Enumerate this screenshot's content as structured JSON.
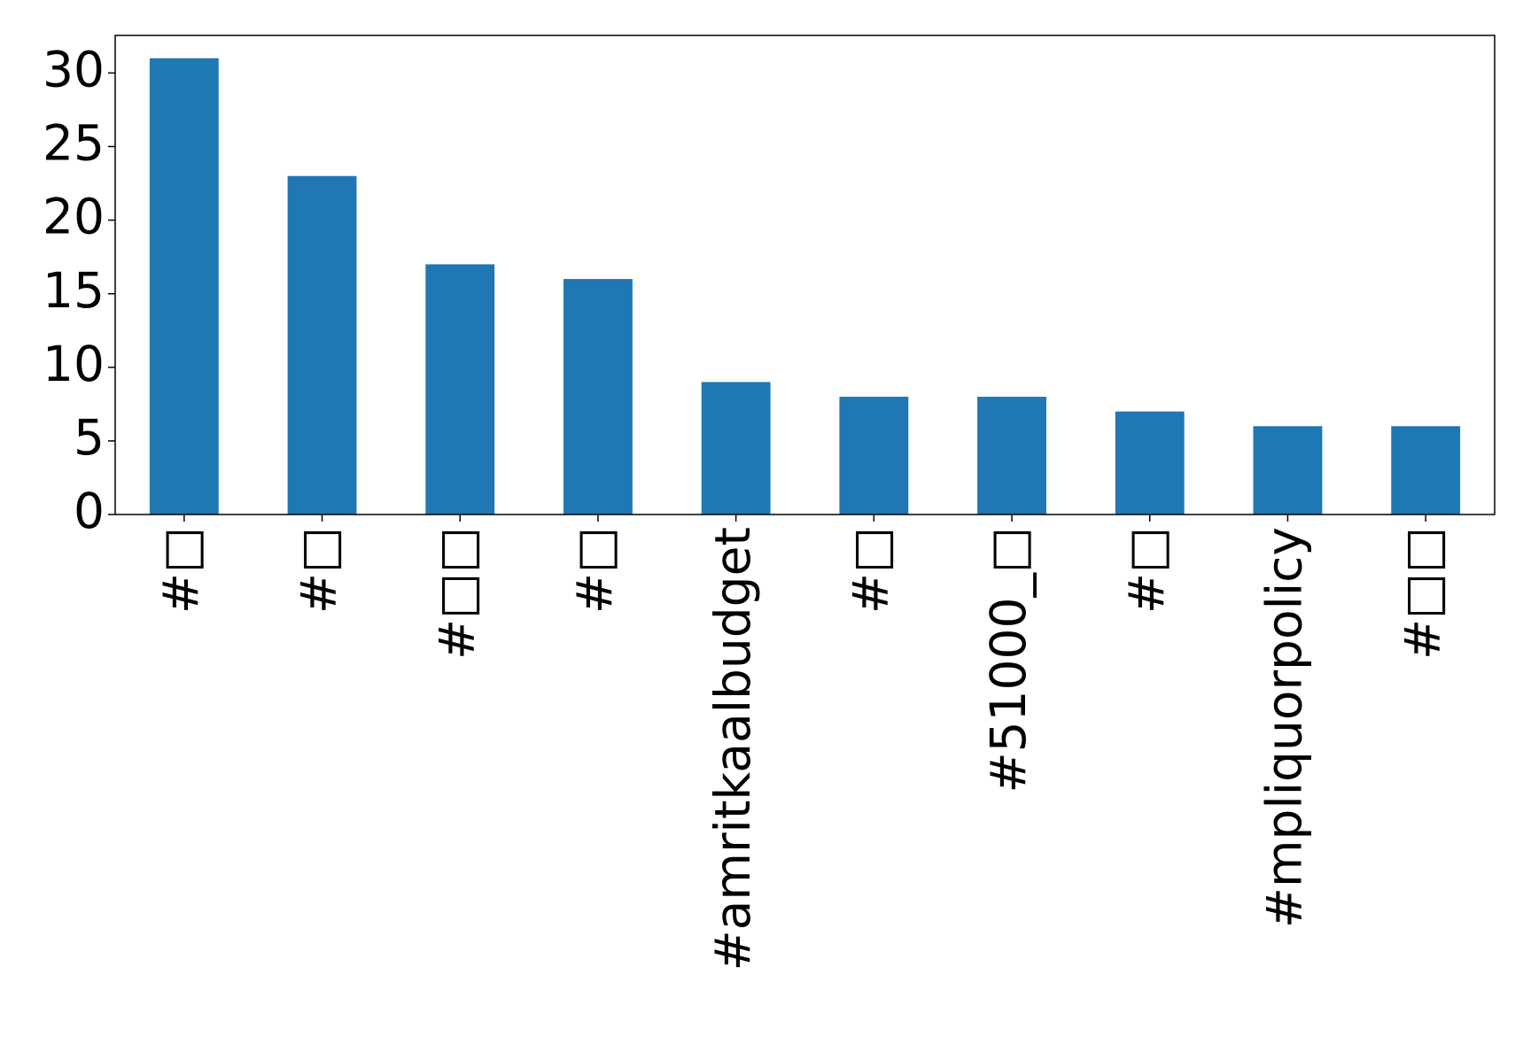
{
  "chart_data": {
    "type": "bar",
    "categories": [
      "#□",
      "#□",
      "#□□",
      "#□",
      "#amritkaalbudget",
      "#□",
      "#51000_□",
      "#□",
      "#mpliquorpolicy",
      "#□□"
    ],
    "values": [
      31,
      23,
      17,
      16,
      9,
      8,
      8,
      7,
      6,
      6
    ],
    "color": "#1f77b4",
    "ylim": [
      0,
      32.55
    ],
    "yticks": [
      0,
      5,
      10,
      15,
      20,
      25,
      30
    ],
    "grid": false
  }
}
